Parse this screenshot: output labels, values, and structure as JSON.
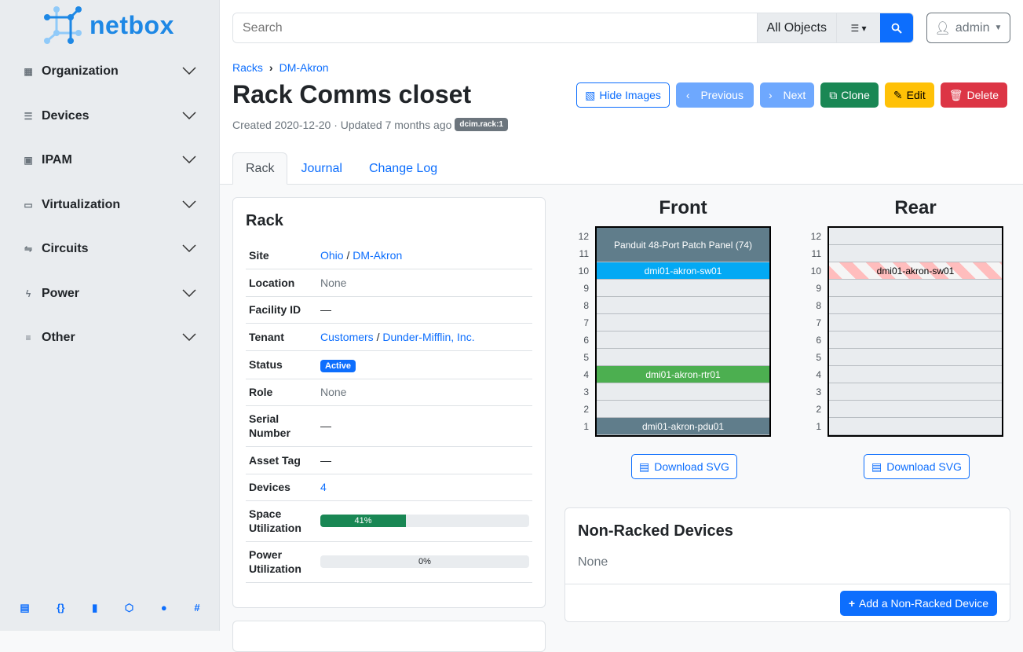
{
  "brand": {
    "name": "netbox"
  },
  "sidebar": {
    "items": [
      {
        "label": "Organization",
        "icon": "building-icon"
      },
      {
        "label": "Devices",
        "icon": "server-icon"
      },
      {
        "label": "IPAM",
        "icon": "ip-icon"
      },
      {
        "label": "Virtualization",
        "icon": "monitor-icon"
      },
      {
        "label": "Circuits",
        "icon": "circuit-icon"
      },
      {
        "label": "Power",
        "icon": "flash-icon"
      },
      {
        "label": "Other",
        "icon": "notes-icon"
      }
    ],
    "footer": [
      "book-icon",
      "api-icon",
      "bookmark-icon",
      "graphql-icon",
      "github-icon",
      "slack-icon"
    ]
  },
  "search": {
    "placeholder": "Search",
    "scope": "All Objects"
  },
  "user": {
    "name": "admin"
  },
  "breadcrumb": [
    "Racks",
    "DM-Akron"
  ],
  "page": {
    "title": "Rack Comms closet",
    "meta": "Created 2020-12-20 · Updated 7 months ago",
    "badge": "dcim.rack:1"
  },
  "actions": {
    "hide_images": "Hide Images",
    "previous": "Previous",
    "next": "Next",
    "clone": "Clone",
    "edit": "Edit",
    "delete": "Delete"
  },
  "tabs": [
    "Rack",
    "Journal",
    "Change Log"
  ],
  "rack_card": {
    "title": "Rack",
    "site": {
      "label": "Site",
      "region": "Ohio",
      "sep": "/",
      "site": "DM-Akron"
    },
    "location": {
      "label": "Location",
      "value": "None"
    },
    "facility": {
      "label": "Facility ID",
      "value": "—"
    },
    "tenant": {
      "label": "Tenant",
      "group": "Customers",
      "sep": "/",
      "tenant": "Dunder-Mifflin, Inc."
    },
    "status": {
      "label": "Status",
      "value": "Active"
    },
    "role": {
      "label": "Role",
      "value": "None"
    },
    "serial": {
      "label": "Serial Number",
      "value": "—"
    },
    "asset": {
      "label": "Asset Tag",
      "value": "—"
    },
    "devices": {
      "label": "Devices",
      "value": "4"
    },
    "space": {
      "label": "Space Utilization",
      "value": "41%",
      "percent": 41
    },
    "power": {
      "label": "Power Utilization",
      "value": "0%",
      "percent": 0
    }
  },
  "elevation": {
    "front_title": "Front",
    "rear_title": "Rear",
    "units": [
      "12",
      "11",
      "10",
      "9",
      "8",
      "7",
      "6",
      "5",
      "4",
      "3",
      "2",
      "1"
    ],
    "front_devices": [
      {
        "name": "Panduit 48-Port Patch Panel (74)",
        "top_u": 12,
        "height_u": 2,
        "color": "#607d8b"
      },
      {
        "name": "dmi01-akron-sw01",
        "top_u": 10,
        "height_u": 1,
        "color": "#03a9f4"
      },
      {
        "name": "dmi01-akron-rtr01",
        "top_u": 4,
        "height_u": 1,
        "color": "#4caf50"
      },
      {
        "name": "dmi01-akron-pdu01",
        "top_u": 1,
        "height_u": 1,
        "color": "#607d8b"
      }
    ],
    "rear_devices": [
      {
        "name": "dmi01-akron-sw01",
        "top_u": 10,
        "height_u": 1,
        "striped": true
      }
    ],
    "download": "Download SVG"
  },
  "non_racked": {
    "title": "Non-Racked Devices",
    "value": "None",
    "add": "Add a Non-Racked Device"
  }
}
